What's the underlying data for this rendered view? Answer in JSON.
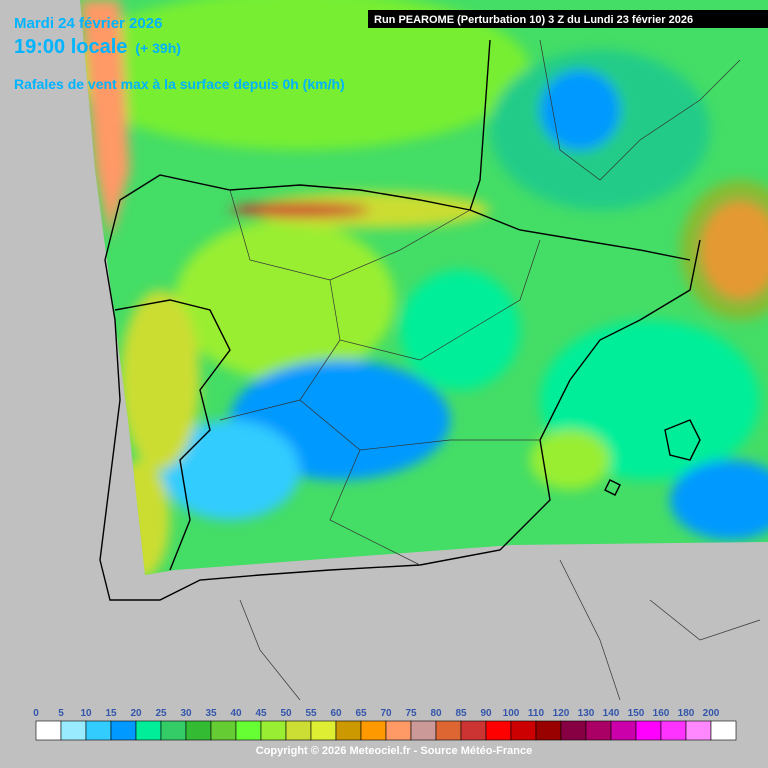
{
  "header": {
    "date": "Mardi 24 février 2026",
    "time": "19:00 locale",
    "lead": "(+ 39h)",
    "parameter": "Rafales de vent max à la surface depuis 0h (km/h)",
    "run": "Run PEAROME (Perturbation 10) 3 Z du Lundi 23 février 2026"
  },
  "legend": {
    "values": [
      0,
      5,
      10,
      15,
      20,
      25,
      30,
      35,
      40,
      45,
      50,
      55,
      60,
      65,
      70,
      75,
      80,
      85,
      90,
      100,
      110,
      120,
      130,
      140,
      150,
      160,
      180,
      200
    ],
    "colors": [
      "#ffffff",
      "#99ecff",
      "#33ccff",
      "#0099ff",
      "#00ee99",
      "#33cc66",
      "#33bb33",
      "#66cc33",
      "#66ff33",
      "#99ee33",
      "#ccdd33",
      "#ddee33",
      "#cc9900",
      "#ff9900",
      "#ff9966",
      "#cc9999",
      "#dd6633",
      "#cc3333",
      "#ff0000",
      "#cc0000",
      "#990000",
      "#880044",
      "#aa0066",
      "#cc00aa",
      "#ff00ff",
      "#ff33ff",
      "#ff88ff",
      "#ffffff"
    ]
  },
  "footer": {
    "copyright": "Copyright © 2026 Meteociel.fr - Source Météo-France"
  }
}
